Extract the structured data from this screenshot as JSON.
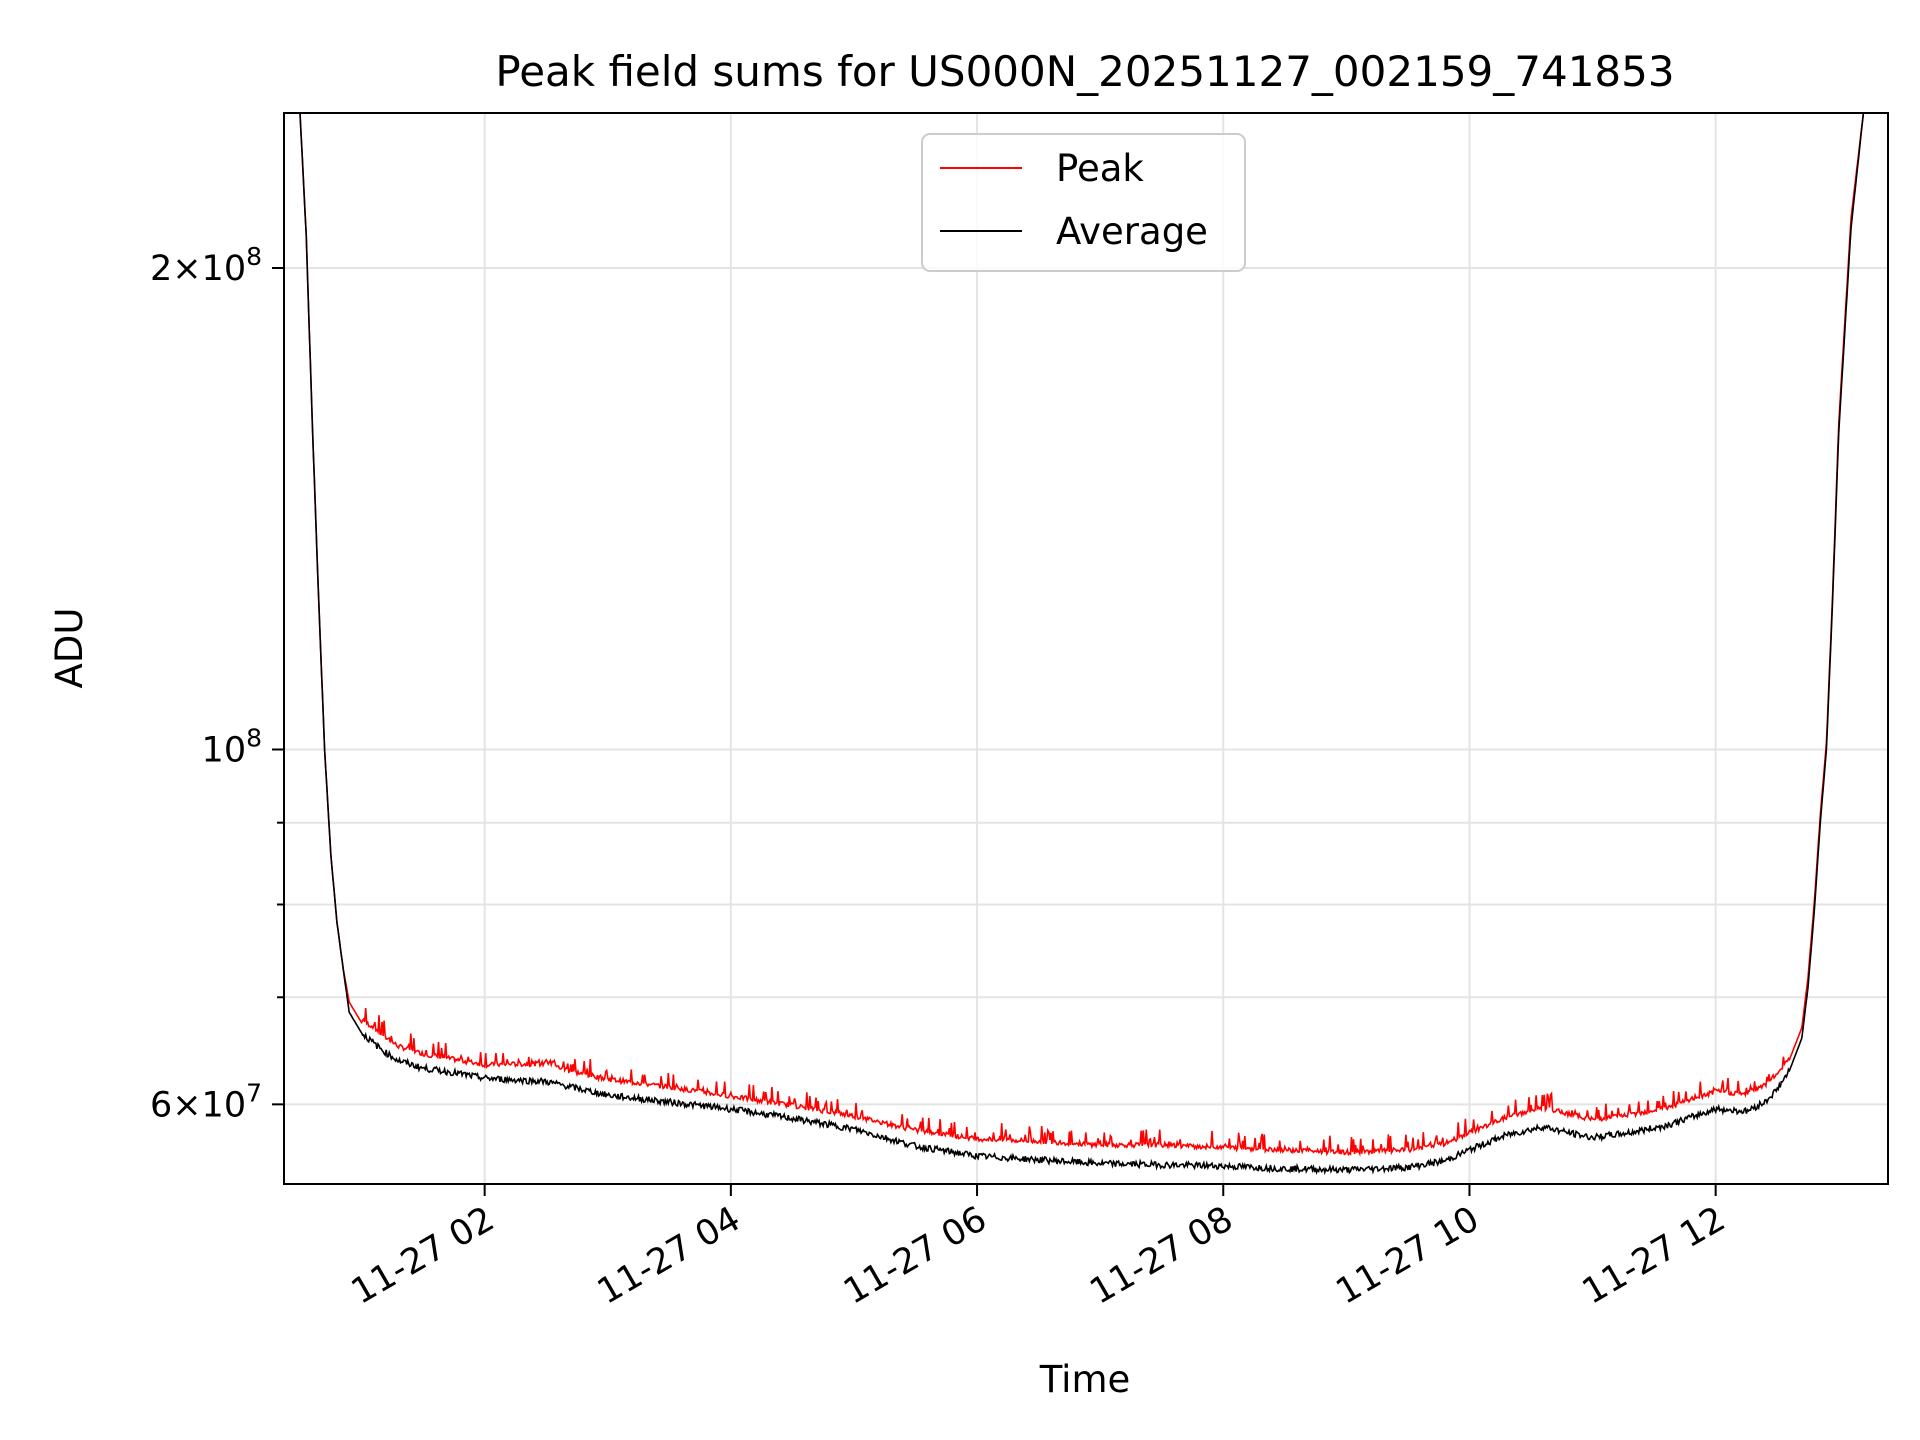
{
  "chart_data": {
    "type": "line",
    "title": "Peak field sums for US000N_20251127_002159_741853",
    "xlabel": "Time",
    "ylabel": "ADU",
    "yscale": "log",
    "xlim_hours": [
      0.37,
      13.4
    ],
    "ylim": [
      53500000,
      250000000
    ],
    "x_ticks": [
      {
        "hour": 2,
        "label": "11-27 02"
      },
      {
        "hour": 4,
        "label": "11-27 04"
      },
      {
        "hour": 6,
        "label": "11-27 06"
      },
      {
        "hour": 8,
        "label": "11-27 08"
      },
      {
        "hour": 10,
        "label": "11-27 10"
      },
      {
        "hour": 12,
        "label": "11-27 12"
      }
    ],
    "y_major_ticks": [
      {
        "value": 60000000,
        "mant": "6",
        "exp": "7"
      },
      {
        "value": 100000000,
        "mant": "",
        "exp": "8"
      },
      {
        "value": 200000000,
        "mant": "2",
        "exp": "8"
      }
    ],
    "y_minor_ticks": [
      70000000,
      80000000,
      90000000
    ],
    "legend": {
      "position": "upper center",
      "entries": [
        "Peak",
        "Average"
      ]
    },
    "grid": true,
    "series": [
      {
        "name": "Peak",
        "color": "#ff0000",
        "hours": [
          0.37,
          0.5,
          0.55,
          0.6,
          0.65,
          0.7,
          0.75,
          0.8,
          0.85,
          0.9,
          1.0,
          1.1,
          1.2,
          1.3,
          1.5,
          1.75,
          2.0,
          2.5,
          2.75,
          3.0,
          3.5,
          4.0,
          4.5,
          5.0,
          5.5,
          6.0,
          6.5,
          7.0,
          7.5,
          8.0,
          8.5,
          9.0,
          9.5,
          9.8,
          10.0,
          10.3,
          10.6,
          10.8,
          11.0,
          11.3,
          11.6,
          11.8,
          12.0,
          12.25,
          12.4,
          12.5,
          12.6,
          12.7,
          12.75,
          12.8,
          12.85,
          12.9,
          12.95,
          13.0,
          13.1,
          13.2,
          13.3,
          13.4
        ],
        "values": [
          250000000,
          250000000,
          210000000,
          160000000,
          125000000,
          100000000,
          86000000,
          78000000,
          73000000,
          69500000,
          67500000,
          66800000,
          65800000,
          65000000,
          64300000,
          63800000,
          63300000,
          63400000,
          62600000,
          62000000,
          61300000,
          60500000,
          59700000,
          58800000,
          57600000,
          56900000,
          56700000,
          56400000,
          56400000,
          56200000,
          56000000,
          55800000,
          56000000,
          56500000,
          57400000,
          58700000,
          59500000,
          59000000,
          58500000,
          58900000,
          59500000,
          60200000,
          60900000,
          60700000,
          61500000,
          62500000,
          64000000,
          67000000,
          72000000,
          80000000,
          91000000,
          101000000,
          125000000,
          160000000,
          215000000,
          250000000,
          250000000,
          250000000
        ]
      },
      {
        "name": "Average",
        "color": "#000000",
        "hours": [
          0.37,
          0.5,
          0.55,
          0.6,
          0.65,
          0.7,
          0.75,
          0.8,
          0.85,
          0.9,
          1.0,
          1.1,
          1.2,
          1.3,
          1.5,
          1.75,
          2.0,
          2.5,
          2.75,
          3.0,
          3.5,
          4.0,
          4.5,
          5.0,
          5.5,
          6.0,
          6.5,
          7.0,
          7.5,
          8.0,
          8.5,
          9.0,
          9.5,
          9.8,
          10.0,
          10.3,
          10.6,
          10.8,
          11.0,
          11.3,
          11.6,
          11.8,
          12.0,
          12.25,
          12.4,
          12.5,
          12.6,
          12.7,
          12.75,
          12.8,
          12.85,
          12.9,
          12.95,
          13.0,
          13.1,
          13.2,
          13.3,
          13.4
        ],
        "values": [
          250000000,
          250000000,
          210000000,
          160000000,
          125000000,
          100000000,
          86000000,
          78000000,
          73000000,
          68500000,
          66500000,
          65500000,
          64600000,
          63900000,
          63200000,
          62800000,
          62300000,
          62000000,
          61400000,
          60800000,
          60200000,
          59600000,
          58800000,
          57900000,
          56500000,
          55700000,
          55400000,
          55100000,
          55000000,
          54900000,
          54700000,
          54600000,
          54800000,
          55300000,
          56200000,
          57400000,
          58100000,
          57600000,
          57200000,
          57600000,
          58200000,
          58900000,
          59600000,
          59400000,
          60200000,
          61300000,
          63000000,
          66000000,
          71000000,
          79000000,
          90000000,
          100000000,
          124000000,
          158000000,
          212000000,
          250000000,
          250000000,
          250000000
        ]
      }
    ]
  }
}
